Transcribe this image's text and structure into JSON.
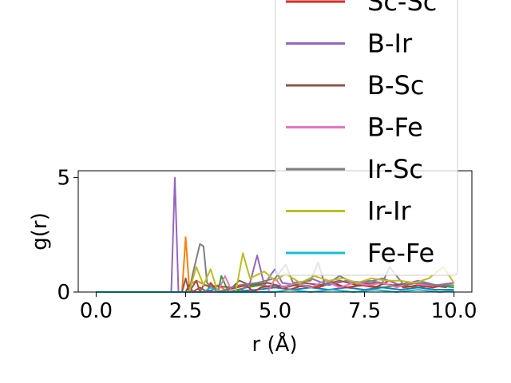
{
  "chart_data": {
    "type": "line",
    "title": "",
    "xlabel": "r (Å)",
    "ylabel": "g(r)",
    "xlim": [
      -0.5,
      10.5
    ],
    "ylim": [
      0,
      5.3
    ],
    "xticks": [
      0.0,
      2.5,
      5.0,
      7.5,
      10.0
    ],
    "xtick_labels": [
      "0.0",
      "2.5",
      "5.0",
      "7.5",
      "10.0"
    ],
    "yticks": [
      0,
      5
    ],
    "ytick_labels": [
      "0",
      "5"
    ],
    "grid": false,
    "legend_position": "top-right (overflowing above the plot)",
    "series": [
      {
        "name": "Sc-Sc",
        "color": "#d62728",
        "x": [
          0,
          2.0,
          2.5,
          2.6,
          2.7,
          2.9,
          3.1,
          3.2,
          3.4,
          4.2,
          4.4,
          4.6,
          5.0,
          5.4,
          5.8,
          6.2,
          6.6,
          7.0,
          7.4,
          7.8,
          8.2,
          8.6,
          9.0,
          9.4,
          9.8
        ],
        "y": [
          0,
          0,
          0,
          0.3,
          0,
          0.2,
          0,
          0.4,
          0,
          0.3,
          0,
          0.2,
          0.3,
          0.1,
          0.3,
          0.2,
          0.4,
          0.2,
          0.3,
          0.2,
          0.5,
          0.2,
          0.3,
          0.2,
          0.3
        ]
      },
      {
        "name": "B-Ir",
        "color": "#9467bd",
        "x": [
          0,
          2.1,
          2.2,
          2.3,
          2.5,
          4.0,
          4.3,
          4.5,
          4.7,
          4.9,
          5.0,
          5.2,
          5.6,
          6.0,
          6.5,
          7.0,
          7.5,
          8.0,
          8.5,
          9.0,
          9.5,
          10.0
        ],
        "y": [
          0,
          0,
          5.0,
          0,
          0,
          0,
          0.4,
          1.6,
          0.3,
          0.8,
          1.0,
          0.4,
          0.3,
          0.6,
          0.3,
          0.5,
          0.4,
          0.6,
          0.3,
          0.5,
          0.3,
          0.4
        ]
      },
      {
        "name": "B-Sc",
        "color": "#8c564b",
        "x": [
          0,
          2.4,
          2.5,
          2.6,
          2.8,
          2.9,
          3.0,
          3.8,
          4.0,
          4.3,
          4.8,
          5.3,
          5.8,
          6.3,
          6.8,
          7.3,
          7.8,
          8.3,
          8.8,
          9.3,
          9.8
        ],
        "y": [
          0,
          0,
          0.6,
          0,
          0.5,
          0,
          0.3,
          0.2,
          0.5,
          0.3,
          0.4,
          0.2,
          0.4,
          0.3,
          0.5,
          0.3,
          0.4,
          0.3,
          0.4,
          0.3,
          0.2
        ]
      },
      {
        "name": "B-Fe",
        "color": "#e377c2",
        "x": [
          0,
          3.4,
          3.6,
          3.8,
          4.8,
          5.0,
          5.2,
          5.6,
          6.0,
          6.4,
          6.8,
          7.2,
          7.6,
          8.0,
          8.4,
          8.8,
          9.2,
          9.6,
          10.0
        ],
        "y": [
          0,
          0,
          0.7,
          0,
          0,
          0.6,
          0.2,
          0.4,
          0.2,
          0.5,
          0.2,
          0.4,
          0.3,
          0.4,
          0.2,
          0.4,
          0.3,
          0.3,
          0.3
        ]
      },
      {
        "name": "Ir-Sc",
        "color": "#7f7f7f",
        "x": [
          0,
          2.6,
          2.7,
          2.9,
          3.0,
          3.1,
          3.4,
          4.0,
          4.5,
          5.0,
          5.3,
          5.5,
          6.0,
          6.2,
          6.4,
          6.8,
          7.2,
          7.6,
          8.0,
          8.2,
          8.6,
          9.0,
          9.5,
          10.0
        ],
        "y": [
          0,
          0,
          0.8,
          2.1,
          2.0,
          0.4,
          0,
          0.3,
          0.4,
          0.6,
          1.2,
          0.4,
          0.5,
          1.3,
          0.3,
          0.7,
          0.4,
          0.5,
          0.4,
          1.1,
          0.3,
          0.4,
          0.3,
          0.3
        ]
      },
      {
        "name": "Ir-Ir",
        "color": "#bcbd22",
        "x": [
          0,
          2.6,
          2.8,
          3.0,
          3.2,
          3.4,
          3.9,
          4.1,
          4.3,
          4.7,
          5.0,
          5.3,
          5.7,
          6.1,
          6.5,
          6.9,
          7.3,
          7.7,
          8.1,
          8.5,
          8.9,
          9.3,
          9.7,
          10.0
        ],
        "y": [
          0,
          0,
          1.1,
          0.3,
          1.0,
          0,
          0,
          1.7,
          0.6,
          0.9,
          0.5,
          0.8,
          0.4,
          0.7,
          0.5,
          0.6,
          0.4,
          0.6,
          0.5,
          0.5,
          0.4,
          0.6,
          1.1,
          0.4
        ]
      },
      {
        "name": "Fe-Fe",
        "color": "#17becf",
        "x": [
          0,
          3.0,
          3.2,
          3.4,
          5.0,
          5.4,
          6.0,
          6.6,
          7.2,
          7.8,
          8.4,
          9.0,
          9.6,
          10.0
        ],
        "y": [
          0,
          0,
          0.2,
          0,
          0,
          0.1,
          0,
          0.1,
          0,
          0.1,
          0,
          0.1,
          0,
          0.05
        ]
      },
      {
        "name": "",
        "color": "#ff7f0e",
        "x": [
          0,
          2.4,
          2.5,
          2.6,
          2.8,
          3.2,
          3.4,
          3.6
        ],
        "y": [
          0,
          0,
          2.4,
          0.3,
          0.5,
          0.2,
          0.3,
          0.1
        ]
      },
      {
        "name": "",
        "color": "#2ca02c",
        "x": [
          0,
          3.0,
          3.2,
          3.4,
          3.5,
          3.7,
          4.2,
          4.6,
          5.0,
          5.5,
          6.0,
          6.5,
          7.0,
          7.5,
          8.0,
          8.5,
          9.0,
          9.5,
          10.0
        ],
        "y": [
          0,
          0,
          0.2,
          0,
          0.7,
          0,
          0.2,
          0.3,
          0.2,
          0.3,
          0.2,
          0.4,
          0.2,
          0.3,
          0.2,
          0.3,
          0.2,
          0.3,
          0.2
        ]
      },
      {
        "name": "",
        "color": "#1f77b4",
        "x": [
          0,
          3.0,
          3.3,
          3.6,
          4.5,
          5.0,
          5.5,
          6.0,
          6.5,
          7.0,
          7.5,
          8.0,
          8.5,
          9.0,
          9.5,
          10.0
        ],
        "y": [
          0,
          0,
          0.1,
          0,
          0.1,
          0.2,
          0.1,
          0.2,
          0.1,
          0.2,
          0.1,
          0.2,
          0.1,
          0.2,
          0.1,
          0.1
        ]
      }
    ]
  }
}
